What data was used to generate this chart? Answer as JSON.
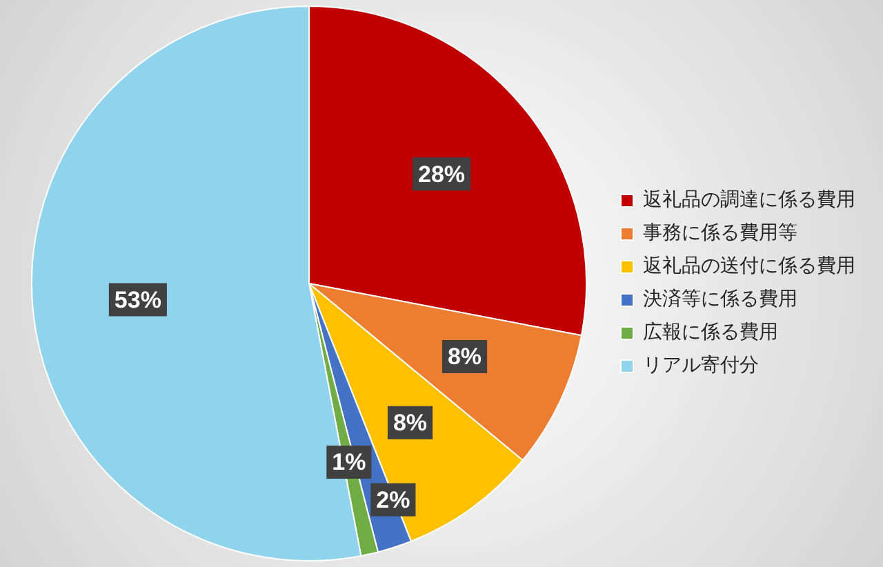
{
  "chart_data": {
    "type": "pie",
    "categories": [
      "返礼品の調達に係る費用",
      "事務に係る費用等",
      "返礼品の送付に係る費用",
      "決済等に係る費用",
      "広報に係る費用",
      "リアル寄付分"
    ],
    "values": [
      28,
      8,
      8,
      2,
      1,
      53
    ],
    "colors": [
      "#c00000",
      "#ed7d31",
      "#ffc000",
      "#4472c4",
      "#70ad47",
      "#8fd3ec"
    ],
    "value_labels": [
      "28%",
      "8%",
      "8%",
      "2%",
      "1%",
      "53%"
    ],
    "legend": "right"
  }
}
